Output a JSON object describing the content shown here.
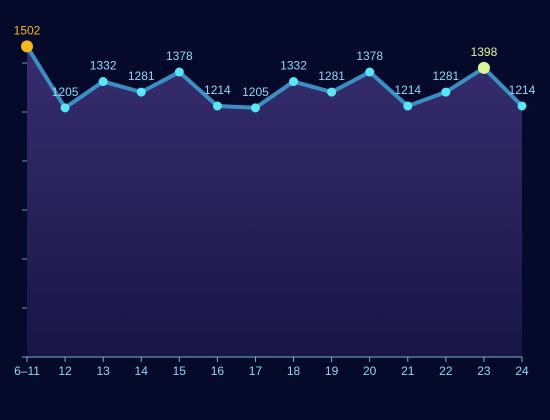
{
  "chart_data": {
    "type": "area",
    "categories": [
      "6–11",
      "12",
      "13",
      "14",
      "15",
      "16",
      "17",
      "18",
      "19",
      "20",
      "21",
      "22",
      "23",
      "24"
    ],
    "values": [
      1502,
      1205,
      1332,
      1281,
      1378,
      1214,
      1205,
      1332,
      1281,
      1378,
      1214,
      1281,
      1398,
      1214
    ],
    "highlights": {
      "max_index": 0,
      "max_color": "#f5b81c",
      "special_index": 12,
      "special_color": "#d9f79a"
    },
    "ylim": [
      0,
      1620
    ],
    "grid": false,
    "colors": {
      "line": "#3b8fc4",
      "point": "#5ae6f7",
      "label": "#8fd6f5",
      "area_top": "#3a2f72",
      "area_bottom": "#1a1646",
      "axis": "#8fd6f5"
    }
  }
}
